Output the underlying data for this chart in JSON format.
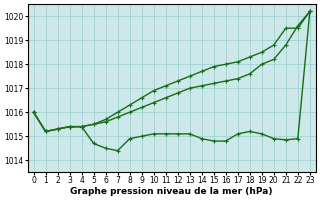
{
  "title": "Graphe pression niveau de la mer (hPa)",
  "xlim": [
    -0.5,
    23.5
  ],
  "ylim": [
    1013.5,
    1020.5
  ],
  "yticks": [
    1014,
    1015,
    1016,
    1017,
    1018,
    1019,
    1020
  ],
  "xticks": [
    0,
    1,
    2,
    3,
    4,
    5,
    6,
    7,
    8,
    9,
    10,
    11,
    12,
    13,
    14,
    15,
    16,
    17,
    18,
    19,
    20,
    21,
    22,
    23
  ],
  "bg_color": "#cce8e8",
  "grid_color": "#99cccc",
  "line_color": "#1a6b1a",
  "line1": [
    1016.0,
    1015.2,
    1015.3,
    1015.4,
    1015.4,
    1015.5,
    1015.7,
    1016.0,
    1016.3,
    1016.6,
    1016.9,
    1017.1,
    1017.3,
    1017.5,
    1017.7,
    1017.9,
    1018.0,
    1018.1,
    1018.3,
    1018.5,
    1018.8,
    1019.5,
    1019.5,
    1020.2
  ],
  "line2": [
    1016.0,
    1015.2,
    1015.3,
    1015.4,
    1015.4,
    1015.5,
    1015.6,
    1015.8,
    1016.0,
    1016.2,
    1016.4,
    1016.6,
    1016.8,
    1017.0,
    1017.1,
    1017.2,
    1017.3,
    1017.4,
    1017.6,
    1018.0,
    1018.2,
    1018.8,
    1019.6,
    1020.2
  ],
  "line3": [
    1016.0,
    1015.2,
    1015.3,
    1015.4,
    1015.4,
    1014.7,
    1014.5,
    1014.4,
    1014.9,
    1015.0,
    1015.1,
    1015.1,
    1015.1,
    1015.1,
    1014.9,
    1014.8,
    1014.8,
    1015.1,
    1015.2,
    1015.1,
    1014.9,
    1014.85,
    1014.9,
    1020.2
  ],
  "marker": "+",
  "marker_size": 3,
  "line_width": 1.0,
  "tick_fontsize": 5.5,
  "label_fontsize": 6.5,
  "fig_bg": "#ffffff"
}
